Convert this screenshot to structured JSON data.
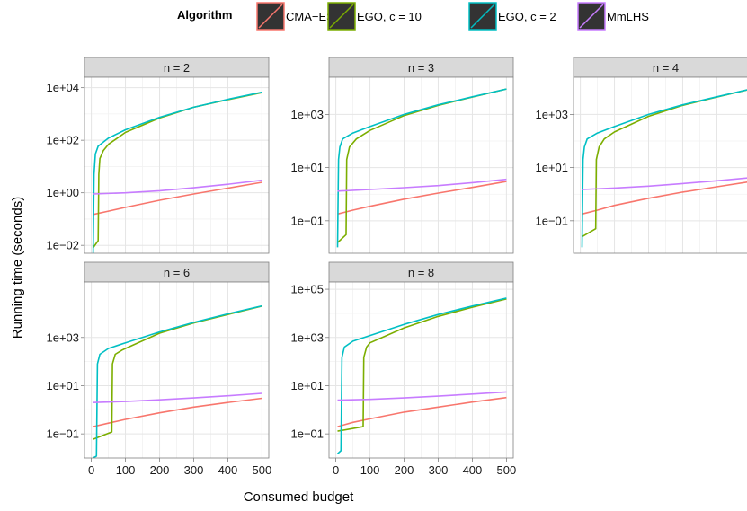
{
  "legend": {
    "title": "Algorithm",
    "position": "top",
    "items": [
      {
        "label": "CMA−ES",
        "color": "#F8766D"
      },
      {
        "label": "EGO, c = 10",
        "color": "#7CAE00"
      },
      {
        "label": "EGO, c = 2",
        "color": "#00BFC4"
      },
      {
        "label": "MmLHS",
        "color": "#C77CFF"
      }
    ]
  },
  "axes": {
    "xlabel": "Consumed budget",
    "ylabel": "Running time (seconds)"
  },
  "chart_data": {
    "type": "line",
    "facet_style": "ggplot2 bw",
    "y_scale": "log10",
    "grid": true,
    "x_ticks": [
      0,
      100,
      200,
      300,
      400,
      500
    ],
    "x_tick_labels": [
      "0",
      "100",
      "200",
      "300",
      "400",
      "500"
    ],
    "xlim": [
      0,
      500
    ],
    "facets": [
      {
        "label": "n = 2",
        "ylim": [
          0.005,
          25000
        ],
        "y_ticks": [
          0.01,
          1,
          100,
          10000
        ],
        "y_tick_labels": [
          "1e−02",
          "1e+00",
          "1e+02",
          "1e+04"
        ],
        "series": [
          {
            "color": "#F8766D",
            "points": [
              [
                5,
                0.15
              ],
              [
                50,
                0.2
              ],
              [
                100,
                0.28
              ],
              [
                200,
                0.52
              ],
              [
                300,
                0.9
              ],
              [
                400,
                1.5
              ],
              [
                500,
                2.5
              ]
            ]
          },
          {
            "color": "#7CAE00",
            "points": [
              [
                5,
                0.008
              ],
              [
                20,
                0.015
              ],
              [
                22,
                5
              ],
              [
                25,
                20
              ],
              [
                35,
                40
              ],
              [
                50,
                70
              ],
              [
                100,
                200
              ],
              [
                200,
                700
              ],
              [
                300,
                1800
              ],
              [
                400,
                3500
              ],
              [
                500,
                6500
              ]
            ]
          },
          {
            "color": "#00BFC4",
            "points": [
              [
                5,
                0.002
              ],
              [
                8,
                5
              ],
              [
                12,
                30
              ],
              [
                20,
                60
              ],
              [
                50,
                120
              ],
              [
                100,
                250
              ],
              [
                200,
                750
              ],
              [
                300,
                1800
              ],
              [
                400,
                3600
              ],
              [
                500,
                6700
              ]
            ]
          },
          {
            "color": "#C77CFF",
            "points": [
              [
                5,
                0.9
              ],
              [
                100,
                1.0
              ],
              [
                200,
                1.2
              ],
              [
                300,
                1.55
              ],
              [
                400,
                2.1
              ],
              [
                500,
                3.0
              ]
            ]
          }
        ]
      },
      {
        "label": "n = 3",
        "ylim": [
          0.006,
          25000
        ],
        "y_ticks": [
          0.1,
          10,
          1000
        ],
        "y_tick_labels": [
          "1e−01",
          "1e+01",
          "1e+03"
        ],
        "series": [
          {
            "color": "#F8766D",
            "points": [
              [
                5,
                0.18
              ],
              [
                50,
                0.25
              ],
              [
                100,
                0.35
              ],
              [
                200,
                0.65
              ],
              [
                300,
                1.1
              ],
              [
                400,
                1.8
              ],
              [
                500,
                3.0
              ]
            ]
          },
          {
            "color": "#7CAE00",
            "points": [
              [
                5,
                0.015
              ],
              [
                30,
                0.03
              ],
              [
                32,
                20
              ],
              [
                40,
                60
              ],
              [
                60,
                120
              ],
              [
                100,
                250
              ],
              [
                200,
                900
              ],
              [
                300,
                2200
              ],
              [
                400,
                4500
              ],
              [
                500,
                9000
              ]
            ]
          },
          {
            "color": "#00BFC4",
            "points": [
              [
                5,
                0.01
              ],
              [
                8,
                20
              ],
              [
                12,
                60
              ],
              [
                20,
                120
              ],
              [
                50,
                200
              ],
              [
                100,
                350
              ],
              [
                200,
                1000
              ],
              [
                300,
                2300
              ],
              [
                400,
                4600
              ],
              [
                500,
                9000
              ]
            ]
          },
          {
            "color": "#C77CFF",
            "points": [
              [
                5,
                1.3
              ],
              [
                100,
                1.5
              ],
              [
                200,
                1.75
              ],
              [
                300,
                2.1
              ],
              [
                400,
                2.7
              ],
              [
                500,
                3.6
              ]
            ]
          }
        ]
      },
      {
        "label": "n = 4",
        "ylim": [
          0.006,
          25000
        ],
        "y_ticks": [
          0.1,
          10,
          1000
        ],
        "y_tick_labels": [
          "1e−01",
          "1e+01",
          "1e+03"
        ],
        "series": [
          {
            "color": "#F8766D",
            "points": [
              [
                5,
                0.18
              ],
              [
                50,
                0.25
              ],
              [
                100,
                0.38
              ],
              [
                200,
                0.7
              ],
              [
                300,
                1.2
              ],
              [
                400,
                1.9
              ],
              [
                500,
                3.0
              ]
            ]
          },
          {
            "color": "#7CAE00",
            "points": [
              [
                5,
                0.025
              ],
              [
                45,
                0.05
              ],
              [
                47,
                20
              ],
              [
                55,
                60
              ],
              [
                70,
                120
              ],
              [
                100,
                220
              ],
              [
                200,
                850
              ],
              [
                300,
                2200
              ],
              [
                400,
                4500
              ],
              [
                500,
                9000
              ]
            ]
          },
          {
            "color": "#00BFC4",
            "points": [
              [
                5,
                0.01
              ],
              [
                8,
                20
              ],
              [
                12,
                60
              ],
              [
                20,
                120
              ],
              [
                50,
                200
              ],
              [
                100,
                350
              ],
              [
                200,
                1000
              ],
              [
                300,
                2300
              ],
              [
                400,
                4600
              ],
              [
                500,
                9000
              ]
            ]
          },
          {
            "color": "#C77CFF",
            "points": [
              [
                5,
                1.5
              ],
              [
                100,
                1.7
              ],
              [
                200,
                2.0
              ],
              [
                300,
                2.5
              ],
              [
                400,
                3.2
              ],
              [
                500,
                4.2
              ]
            ]
          }
        ]
      },
      {
        "label": "n = 6",
        "ylim": [
          0.01,
          200000
        ],
        "y_ticks": [
          0.1,
          10,
          1000
        ],
        "y_tick_labels": [
          "1e−01",
          "1e+01",
          "1e+03"
        ],
        "series": [
          {
            "color": "#F8766D",
            "points": [
              [
                5,
                0.2
              ],
              [
                50,
                0.28
              ],
              [
                100,
                0.4
              ],
              [
                200,
                0.75
              ],
              [
                300,
                1.3
              ],
              [
                400,
                2.0
              ],
              [
                500,
                3.0
              ]
            ]
          },
          {
            "color": "#7CAE00",
            "points": [
              [
                5,
                0.06
              ],
              [
                60,
                0.12
              ],
              [
                62,
                80
              ],
              [
                70,
                200
              ],
              [
                90,
                300
              ],
              [
                100,
                350
              ],
              [
                200,
                1500
              ],
              [
                300,
                4000
              ],
              [
                400,
                9000
              ],
              [
                500,
                20000
              ]
            ]
          },
          {
            "color": "#00BFC4",
            "points": [
              [
                5,
                0.01
              ],
              [
                15,
                0.012
              ],
              [
                18,
                80
              ],
              [
                25,
                200
              ],
              [
                50,
                350
              ],
              [
                100,
                600
              ],
              [
                200,
                1700
              ],
              [
                300,
                4200
              ],
              [
                400,
                9500
              ],
              [
                500,
                20500
              ]
            ]
          },
          {
            "color": "#C77CFF",
            "points": [
              [
                5,
                2.0
              ],
              [
                100,
                2.2
              ],
              [
                200,
                2.6
              ],
              [
                300,
                3.1
              ],
              [
                400,
                3.8
              ],
              [
                500,
                4.8
              ]
            ]
          }
        ]
      },
      {
        "label": "n = 8",
        "ylim": [
          0.01,
          200000
        ],
        "y_ticks": [
          0.1,
          10,
          1000,
          100000
        ],
        "y_tick_labels": [
          "1e−01",
          "1e+01",
          "1e+03",
          "1e+05"
        ],
        "series": [
          {
            "color": "#F8766D",
            "points": [
              [
                5,
                0.2
              ],
              [
                50,
                0.3
              ],
              [
                100,
                0.42
              ],
              [
                200,
                0.8
              ],
              [
                300,
                1.3
              ],
              [
                400,
                2.1
              ],
              [
                500,
                3.2
              ]
            ]
          },
          {
            "color": "#7CAE00",
            "points": [
              [
                5,
                0.13
              ],
              [
                80,
                0.2
              ],
              [
                82,
                150
              ],
              [
                90,
                400
              ],
              [
                100,
                600
              ],
              [
                200,
                2500
              ],
              [
                300,
                7500
              ],
              [
                400,
                18000
              ],
              [
                500,
                40000
              ]
            ]
          },
          {
            "color": "#00BFC4",
            "points": [
              [
                5,
                0.015
              ],
              [
                15,
                0.02
              ],
              [
                18,
                150
              ],
              [
                25,
                400
              ],
              [
                50,
                700
              ],
              [
                100,
                1200
              ],
              [
                200,
                3500
              ],
              [
                300,
                9000
              ],
              [
                400,
                20000
              ],
              [
                500,
                43000
              ]
            ]
          },
          {
            "color": "#C77CFF",
            "points": [
              [
                5,
                2.5
              ],
              [
                100,
                2.7
              ],
              [
                200,
                3.1
              ],
              [
                300,
                3.7
              ],
              [
                400,
                4.5
              ],
              [
                500,
                5.5
              ]
            ]
          }
        ]
      }
    ]
  }
}
